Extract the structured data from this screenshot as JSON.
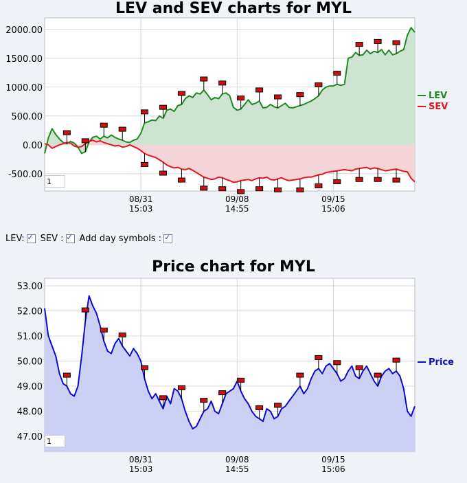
{
  "charts": {
    "top_title": "LEV and SEV charts for MYL",
    "bottom_title": "Price chart for MYL",
    "pager_value": "1"
  },
  "controls": {
    "lev_label": "LEV:",
    "sev_label": "SEV :",
    "day_symbols_label": "Add day symbols :"
  },
  "colors": {
    "lev": "#1e8a1e",
    "lev_fill": "#cfe3d2",
    "sev": "#e8141c",
    "sev_fill": "#f3d4d8",
    "price": "#0b0bcf",
    "price_fill": "#ccd0f5",
    "grid": "#d4d8de",
    "marker": "#d01010"
  },
  "chart_data": [
    {
      "type": "line",
      "title": "LEV and SEV charts for MYL",
      "ylim": [
        -800,
        2200
      ],
      "yticks": [
        "2000.00",
        "1500.00",
        "1000.00",
        "500.00",
        "0.00",
        "-500.00"
      ],
      "ytick_values": [
        2000,
        1500,
        1000,
        500,
        0,
        -500
      ],
      "xticks": [
        {
          "date": "08/31",
          "time": "15:03"
        },
        {
          "date": "09/08",
          "time": "14:55"
        },
        {
          "date": "09/15",
          "time": "15:06"
        }
      ],
      "x_range": [
        0,
        100
      ],
      "xtick_positions": [
        26,
        52,
        78
      ],
      "legend": [
        "LEV",
        "SEV"
      ],
      "legend_position": "right",
      "grid": true,
      "series": [
        {
          "name": "LEV",
          "x": [
            0,
            1,
            2,
            3,
            4,
            5,
            6,
            7,
            8,
            9,
            10,
            11,
            12,
            13,
            14,
            15,
            16,
            17,
            18,
            19,
            20,
            21,
            22,
            23,
            24,
            25,
            26,
            27,
            28,
            29,
            30,
            31,
            32,
            33,
            34,
            35,
            36,
            37,
            38,
            39,
            40,
            41,
            42,
            43,
            44,
            45,
            46,
            47,
            48,
            49,
            50,
            51,
            52,
            53,
            54,
            55,
            56,
            57,
            58,
            59,
            60,
            61,
            62,
            63,
            64,
            65,
            66,
            67,
            68,
            69,
            70,
            71,
            72,
            73,
            74,
            75,
            76,
            77,
            78,
            79,
            80,
            81,
            82,
            83,
            84,
            85,
            86,
            87,
            88,
            89,
            90,
            91,
            92,
            93,
            94,
            95,
            96,
            97,
            98,
            99,
            100
          ],
          "values": [
            -150,
            120,
            280,
            180,
            100,
            40,
            20,
            60,
            30,
            -40,
            -150,
            -120,
            50,
            130,
            150,
            100,
            150,
            120,
            170,
            130,
            100,
            80,
            50,
            40,
            80,
            100,
            200,
            380,
            400,
            430,
            420,
            500,
            460,
            600,
            620,
            580,
            680,
            700,
            800,
            850,
            820,
            900,
            880,
            950,
            870,
            780,
            820,
            800,
            880,
            900,
            850,
            650,
            600,
            620,
            700,
            780,
            700,
            720,
            760,
            640,
            650,
            700,
            660,
            640,
            680,
            720,
            650,
            640,
            660,
            680,
            700,
            730,
            760,
            800,
            850,
            950,
            1000,
            1020,
            1020,
            1050,
            1030,
            1050,
            1500,
            1520,
            1600,
            1550,
            1560,
            1640,
            1580,
            1620,
            1600,
            1650,
            1560,
            1640,
            1560,
            1580,
            1620,
            1650,
            1900,
            2030,
            1950
          ]
        },
        {
          "name": "SEV",
          "x": [
            0,
            1,
            2,
            3,
            4,
            5,
            6,
            7,
            8,
            9,
            10,
            11,
            12,
            13,
            14,
            15,
            16,
            17,
            18,
            19,
            20,
            21,
            22,
            23,
            24,
            25,
            26,
            27,
            28,
            29,
            30,
            31,
            32,
            33,
            34,
            35,
            36,
            37,
            38,
            39,
            40,
            41,
            42,
            43,
            44,
            45,
            46,
            47,
            48,
            49,
            50,
            51,
            52,
            53,
            54,
            55,
            56,
            57,
            58,
            59,
            60,
            61,
            62,
            63,
            64,
            65,
            66,
            67,
            68,
            69,
            70,
            71,
            72,
            73,
            74,
            75,
            76,
            77,
            78,
            79,
            80,
            81,
            82,
            83,
            84,
            85,
            86,
            87,
            88,
            89,
            90,
            91,
            92,
            93,
            94,
            95,
            96,
            97,
            98,
            99,
            100
          ],
          "values": [
            20,
            0,
            -60,
            -30,
            0,
            20,
            40,
            30,
            -20,
            -40,
            -30,
            20,
            60,
            80,
            50,
            70,
            40,
            20,
            0,
            -20,
            -10,
            -40,
            -30,
            0,
            -30,
            -60,
            -100,
            -150,
            -180,
            -200,
            -220,
            -260,
            -300,
            -350,
            -380,
            -400,
            -390,
            -420,
            -430,
            -410,
            -440,
            -480,
            -520,
            -560,
            -580,
            -600,
            -590,
            -560,
            -570,
            -600,
            -620,
            -650,
            -640,
            -620,
            -610,
            -600,
            -620,
            -590,
            -570,
            -580,
            -560,
            -600,
            -610,
            -590,
            -570,
            -600,
            -620,
            -610,
            -600,
            -590,
            -570,
            -560,
            -560,
            -540,
            -520,
            -510,
            -480,
            -470,
            -460,
            -450,
            -440,
            -430,
            -440,
            -450,
            -420,
            -410,
            -400,
            -390,
            -420,
            -400,
            -410,
            -430,
            -450,
            -440,
            -430,
            -420,
            -440,
            -460,
            -470,
            -580,
            -640
          ]
        }
      ],
      "day_markers_lev_x": [
        6,
        11,
        16,
        21,
        27,
        32,
        37,
        43,
        48,
        53,
        58,
        63,
        69,
        74,
        79,
        85,
        90,
        95
      ],
      "day_markers_sev_x": [
        27,
        32,
        37,
        43,
        48,
        53,
        58,
        63,
        69,
        74,
        79,
        85,
        90,
        95
      ]
    },
    {
      "type": "area",
      "title": "Price chart for MYL",
      "ylim": [
        46.4,
        53.3
      ],
      "yticks": [
        "53.00",
        "52.00",
        "51.00",
        "50.00",
        "49.00",
        "48.00",
        "47.00"
      ],
      "ytick_values": [
        53,
        52,
        51,
        50,
        49,
        48,
        47
      ],
      "xticks": [
        {
          "date": "08/31",
          "time": "15:03"
        },
        {
          "date": "09/08",
          "time": "14:55"
        },
        {
          "date": "09/15",
          "time": "15:06"
        }
      ],
      "x_range": [
        0,
        100
      ],
      "xtick_positions": [
        26,
        52,
        78
      ],
      "legend": [
        "Price"
      ],
      "legend_position": "right",
      "grid": true,
      "series": [
        {
          "name": "Price",
          "x": [
            0,
            1,
            2,
            3,
            4,
            5,
            6,
            7,
            8,
            9,
            10,
            11,
            12,
            13,
            14,
            15,
            16,
            17,
            18,
            19,
            20,
            21,
            22,
            23,
            24,
            25,
            26,
            27,
            28,
            29,
            30,
            31,
            32,
            33,
            34,
            35,
            36,
            37,
            38,
            39,
            40,
            41,
            42,
            43,
            44,
            45,
            46,
            47,
            48,
            49,
            50,
            51,
            52,
            53,
            54,
            55,
            56,
            57,
            58,
            59,
            60,
            61,
            62,
            63,
            64,
            65,
            66,
            67,
            68,
            69,
            70,
            71,
            72,
            73,
            74,
            75,
            76,
            77,
            78,
            79,
            80,
            81,
            82,
            83,
            84,
            85,
            86,
            87,
            88,
            89,
            90,
            91,
            92,
            93,
            94,
            95,
            96,
            97,
            98,
            99,
            100
          ],
          "values": [
            52.1,
            51.0,
            50.6,
            50.2,
            49.5,
            49.1,
            49.0,
            48.7,
            48.6,
            49.0,
            50.2,
            51.6,
            52.6,
            52.2,
            51.9,
            51.4,
            50.8,
            50.4,
            50.3,
            50.7,
            50.9,
            50.6,
            50.4,
            50.2,
            50.5,
            50.3,
            50.0,
            49.3,
            48.8,
            48.5,
            48.7,
            48.4,
            48.1,
            48.6,
            48.3,
            48.9,
            48.8,
            48.5,
            48.0,
            47.6,
            47.3,
            47.4,
            47.7,
            48.0,
            48.1,
            48.4,
            48.0,
            47.9,
            48.3,
            48.7,
            48.8,
            48.9,
            49.2,
            48.8,
            48.5,
            48.3,
            48.0,
            47.8,
            47.7,
            47.6,
            48.1,
            48.0,
            47.7,
            47.8,
            48.1,
            48.2,
            48.4,
            48.6,
            48.8,
            49.0,
            48.7,
            48.9,
            49.3,
            49.6,
            49.7,
            49.5,
            49.8,
            49.9,
            49.7,
            49.5,
            49.2,
            49.3,
            49.6,
            49.8,
            49.4,
            49.3,
            49.6,
            49.8,
            49.5,
            49.2,
            49.0,
            49.4,
            49.6,
            49.7,
            49.5,
            49.6,
            49.4,
            48.9,
            48.0,
            47.8,
            48.2
          ]
        }
      ],
      "day_markers_x": [
        6,
        11,
        16,
        21,
        27,
        32,
        37,
        43,
        48,
        53,
        58,
        63,
        69,
        74,
        79,
        85,
        90,
        95
      ]
    }
  ]
}
